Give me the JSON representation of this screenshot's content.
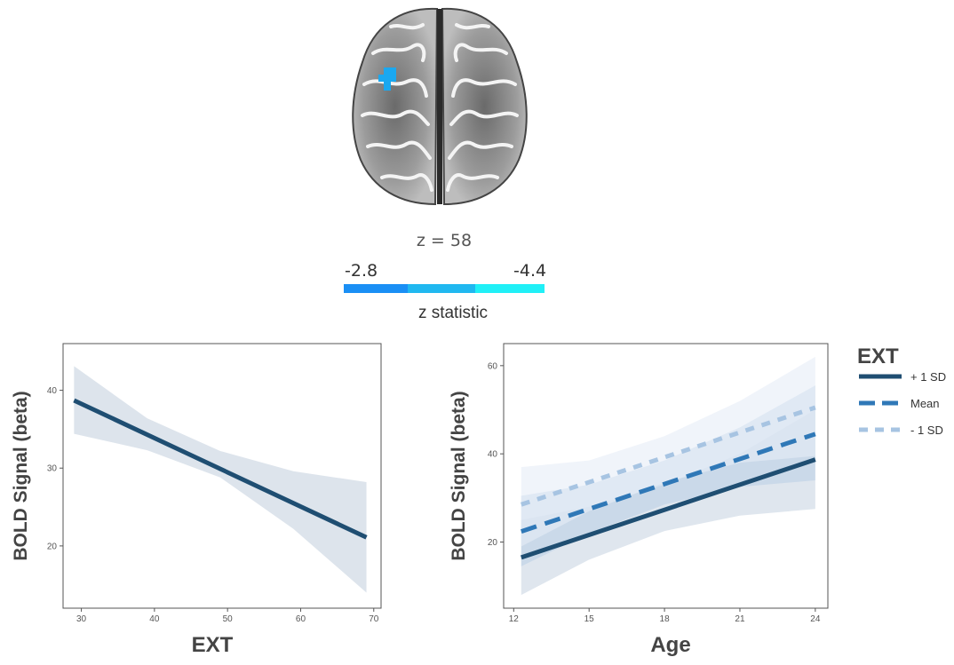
{
  "brain_panel": {
    "slice_label": "z = 58",
    "colorbar": {
      "min_label": "-2.8",
      "max_label": "-4.4",
      "title": "z statistic",
      "colors": [
        "#1a8ff5",
        "#20b8f0",
        "#20f0f7"
      ]
    },
    "cluster_color": "#1aa8f0"
  },
  "chart_data": [
    {
      "type": "line",
      "title": "",
      "xlabel": "EXT",
      "ylabel": "BOLD Signal (beta)",
      "xlim": [
        27.5,
        71
      ],
      "ylim": [
        12,
        46
      ],
      "xticks": [
        30,
        40,
        50,
        60,
        70
      ],
      "yticks": [
        20,
        30,
        40
      ],
      "grid": false,
      "series": [
        {
          "x": [
            29,
            69
          ],
          "y": [
            38.7,
            21.1
          ],
          "ci_x": [
            29,
            39,
            49,
            59,
            69
          ],
          "ci_lower": [
            34.4,
            32.3,
            28.8,
            22.2,
            14.0
          ],
          "ci_upper": [
            43.1,
            36.4,
            32.2,
            29.6,
            28.2
          ]
        }
      ],
      "colors": {
        "line": "#1f4e72",
        "ribbon": "#dde4ec"
      }
    },
    {
      "type": "line",
      "title": "",
      "xlabel": "Age",
      "ylabel": "BOLD Signal (beta)",
      "xlim": [
        11.6,
        24.5
      ],
      "ylim": [
        5,
        65
      ],
      "xticks": [
        12,
        15,
        18,
        21,
        24
      ],
      "yticks": [
        20,
        40,
        60
      ],
      "grid": false,
      "legend": {
        "title": "EXT",
        "position": "right"
      },
      "series": [
        {
          "name": "+ 1 SD",
          "x": [
            12.3,
            24
          ],
          "y": [
            16.5,
            38.7
          ],
          "ci_x": [
            12.3,
            15,
            18,
            21,
            24
          ],
          "ci_lower": [
            8.0,
            16.0,
            22.5,
            26.0,
            27.5
          ],
          "ci_upper": [
            25.0,
            28.0,
            33.0,
            40.0,
            50.0
          ],
          "style": "solid",
          "color": "#1f4e72",
          "ribbon": "#c9d6e2"
        },
        {
          "name": "Mean",
          "x": [
            12.3,
            24
          ],
          "y": [
            22.4,
            44.5
          ],
          "ci_x": [
            12.3,
            15,
            18,
            21,
            24
          ],
          "ci_lower": [
            14.5,
            22.0,
            28.5,
            32.5,
            34.0
          ],
          "ci_upper": [
            30.5,
            33.0,
            38.5,
            46.0,
            55.5
          ],
          "style": "dashed",
          "color": "#2f78b7",
          "ribbon": "#bcd0e6"
        },
        {
          "name": "- 1 SD",
          "x": [
            12.3,
            24
          ],
          "y": [
            28.5,
            50.5
          ],
          "ci_x": [
            12.3,
            15,
            18,
            21,
            24
          ],
          "ci_lower": [
            19.0,
            27.0,
            33.5,
            38.0,
            39.5
          ],
          "ci_upper": [
            37.0,
            38.5,
            44.0,
            52.0,
            62.0
          ],
          "style": "dotted",
          "color": "#a7c4e2",
          "ribbon": "#e6edf6"
        }
      ]
    }
  ]
}
